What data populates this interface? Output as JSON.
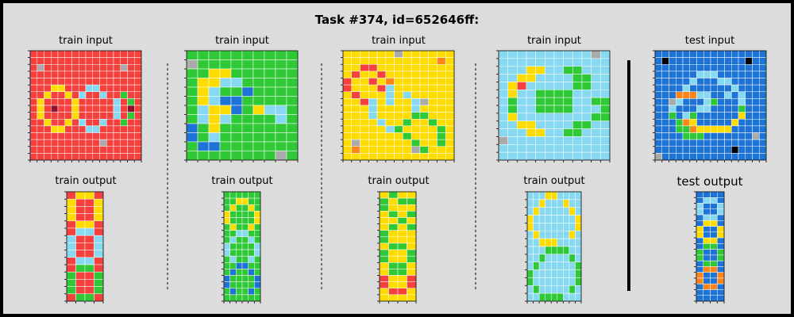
{
  "title": "Task #374, id=652646ff:",
  "palette": {
    "0": "#000000",
    "1": "#1E74D6",
    "2": "#F5403E",
    "3": "#2FC937",
    "4": "#FFDC00",
    "5": "#AAAAAA",
    "6": "#F012BE",
    "7": "#FF851B",
    "8": "#87D8F1",
    "9": "#921231"
  },
  "colors": {
    "background": "#dcdcdc",
    "border": "#000000",
    "gridline": "#ffffff"
  },
  "panels": [
    {
      "label": "train input",
      "grid": [
        "2222222222222222",
        "2222222222222222",
        "2522222222222522",
        "2222222222222222",
        "2222222222222222",
        "2224422288222222",
        "2242242822822322",
        "2422224222228232",
        "2429224222228292",
        "2422224222228232",
        "2242242822822322",
        "2224422288222222",
        "2222222222222222",
        "2222222222522222",
        "2222222222222222",
        "2222222222222222"
      ]
    },
    {
      "label": "train output",
      "grid": [
        "2442",
        "4224",
        "4224",
        "4224",
        "2442",
        "2882",
        "8228",
        "8228",
        "8228",
        "2882",
        "2332",
        "3223",
        "3223",
        "3223",
        "2332"
      ]
    },
    {
      "label": "train input",
      "grid": [
        "3333333333",
        "5333333333",
        "3344333333",
        "3448833333",
        "3483313333",
        "3481133333",
        "3844134883",
        "3848333383",
        "1343333333",
        "1383333333",
        "3113333333",
        "3333333353"
      ]
    },
    {
      "label": "train output",
      "grid": [
        "333333",
        "334433",
        "343343",
        "433334",
        "433334",
        "343343",
        "338833",
        "383383",
        "833338",
        "833338",
        "383383",
        "331133",
        "313313",
        "133331",
        "133331",
        "313313",
        "333333"
      ]
    },
    {
      "label": "train input",
      "grid": [
        "4444445444444",
        "4444444444474",
        "4422444444444",
        "4244244444444",
        "2442474444444",
        "2444284444444",
        "4244484844444",
        "4428484485444",
        "4448444484444",
        "4448444433444",
        "4444844344344",
        "4444483444434",
        "4444444344434",
        "4544444434434",
        "4744444453444",
        "4444444444444"
      ]
    },
    {
      "label": "train output",
      "grid": [
        "4344",
        "3433",
        "3444",
        "4343",
        "4434",
        "4343",
        "3444",
        "3444",
        "4334",
        "3443",
        "3443",
        "4334",
        "4334",
        "2442",
        "2442",
        "4224",
        "4444"
      ]
    },
    {
      "label": "train input",
      "grid": [
        "888888888858",
        "888888888888",
        "888448833888",
        "884488883388",
        "842888883388",
        "848833338888",
        "838833338833",
        "838833338883",
        "848888888833",
        "884488883388",
        "888448833888",
        "588888888888",
        "888888888888",
        "888888888888"
      ]
    },
    {
      "label": "train output",
      "grid": [
        "888448888",
        "884888488",
        "848888848",
        "488888884",
        "488888884",
        "848888848",
        "884448888",
        "888333388",
        "883888838",
        "838888883",
        "388888883",
        "388888883",
        "838888838",
        "883333888"
      ]
    },
    {
      "label": "test input",
      "grid": [
        "1111111111111111",
        "1011111111111011",
        "1111111111111111",
        "1111118881111111",
        "1111181118811111",
        "1111811111181111",
        "1117778811818111",
        "1158111831118111",
        "1181118811113111",
        "1131831111114111",
        "1113741111141111",
        "1113374444411111",
        "1111333111111151",
        "1111111111111111",
        "1111111111101111",
        "5111111111111111"
      ]
    },
    {
      "label": "test output",
      "grid": [
        "1111",
        "1881",
        "8118",
        "8118",
        "1881",
        "1441",
        "4114",
        "4114",
        "1441",
        "1331",
        "3113",
        "3113",
        "1331",
        "1771",
        "7117",
        "7117",
        "1771",
        "1111",
        "1111"
      ]
    }
  ]
}
